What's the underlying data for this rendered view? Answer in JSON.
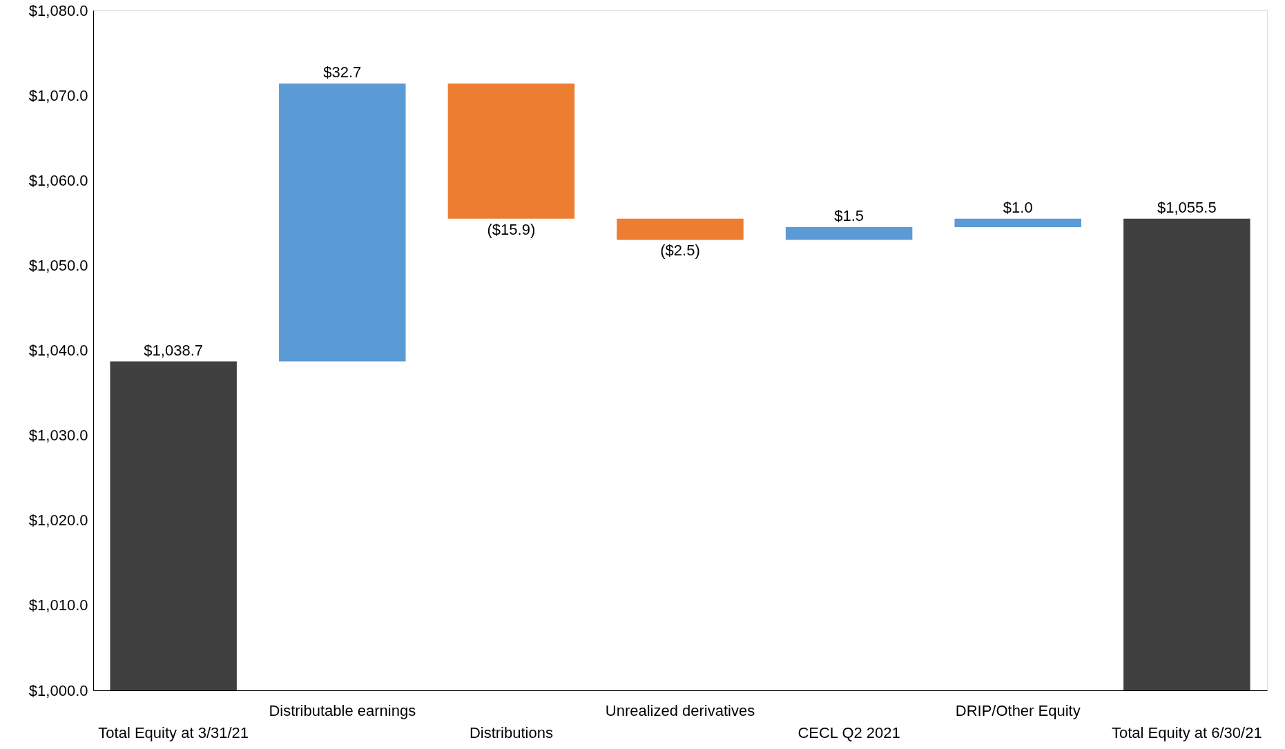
{
  "chart_data": {
    "type": "bar",
    "categories": [
      "Total Equity at 3/31/21",
      "Distributable earnings",
      "Distributions",
      "Unrealized derivatives",
      "CECL Q2 2021",
      "DRIP/Other Equity",
      "Total Equity at 6/30/21"
    ],
    "values": [
      1038.7,
      32.7,
      -15.9,
      -2.5,
      1.5,
      1.0,
      1055.5
    ],
    "base": [
      null,
      1038.7,
      1071.4,
      1055.5,
      1053.0,
      1054.5,
      null
    ],
    "colors": [
      "#404040",
      "#5b9bd5",
      "#ed7d31",
      "#ed7d31",
      "#5b9bd5",
      "#5b9bd5",
      "#404040"
    ],
    "value_labels": [
      "$1,038.7",
      "$32.7",
      "($15.9)",
      "($2.5)",
      "$1.5",
      "$1.0",
      "$1,055.5"
    ],
    "ylim": [
      1000,
      1080
    ],
    "yticks": [
      {
        "value": 1000,
        "label": "$1,000.0"
      },
      {
        "value": 1010,
        "label": "$1,010.0"
      },
      {
        "value": 1020,
        "label": "$1,020.0"
      },
      {
        "value": 1030,
        "label": "$1,030.0"
      },
      {
        "value": 1040,
        "label": "$1,040.0"
      },
      {
        "value": 1050,
        "label": "$1,050.0"
      },
      {
        "value": 1060,
        "label": "$1,060.0"
      },
      {
        "value": 1070,
        "label": "$1,070.0"
      },
      {
        "value": 1080,
        "label": "$1,080.0"
      }
    ],
    "grid": false
  }
}
